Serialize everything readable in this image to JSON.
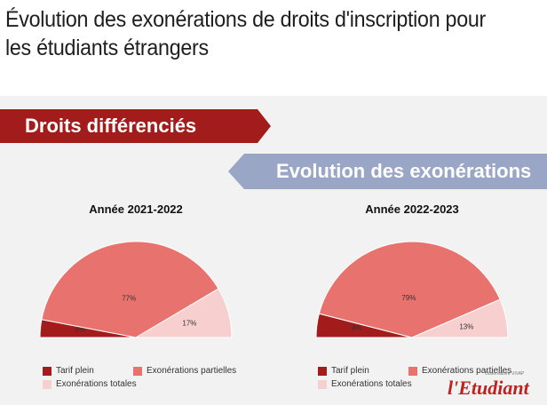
{
  "page": {
    "title": "Évolution des exonérations de droits d'inscription pour les étudiants étrangers"
  },
  "banners": {
    "primary": "Droits différenciés",
    "secondary": "Evolution des exonérations"
  },
  "colors": {
    "red_banner": "#a31c1c",
    "blue_banner": "#9aa6c6",
    "panel_bg": "#f2f2f2",
    "tarif_plein": "#a31c1c",
    "exo_partielles": "#e8726e",
    "exo_totales": "#f7cfcf"
  },
  "chart_data": [
    {
      "type": "pie",
      "variant": "half-pie",
      "title": "Année 2021-2022",
      "categories": [
        "Tarif plein",
        "Exonérations partielles",
        "Exonérations totales"
      ],
      "values": [
        6,
        77,
        17
      ],
      "data_labels": [
        "6%",
        "77%",
        "17%"
      ],
      "legend_position": "bottom"
    },
    {
      "type": "pie",
      "variant": "half-pie",
      "title": "Année 2022-2023",
      "categories": [
        "Tarif plein",
        "Exonérations partielles",
        "Exonérations totales"
      ],
      "values": [
        8,
        79,
        13
      ],
      "data_labels": [
        "8%",
        "79%",
        "13%"
      ],
      "legend_position": "bottom"
    }
  ],
  "legend": {
    "items": [
      "Tarif plein",
      "Exonérations partielles",
      "Exonérations totales"
    ]
  },
  "brand": {
    "logo": "l'Etudiant",
    "tagline": "Observatoire VIVAP"
  }
}
